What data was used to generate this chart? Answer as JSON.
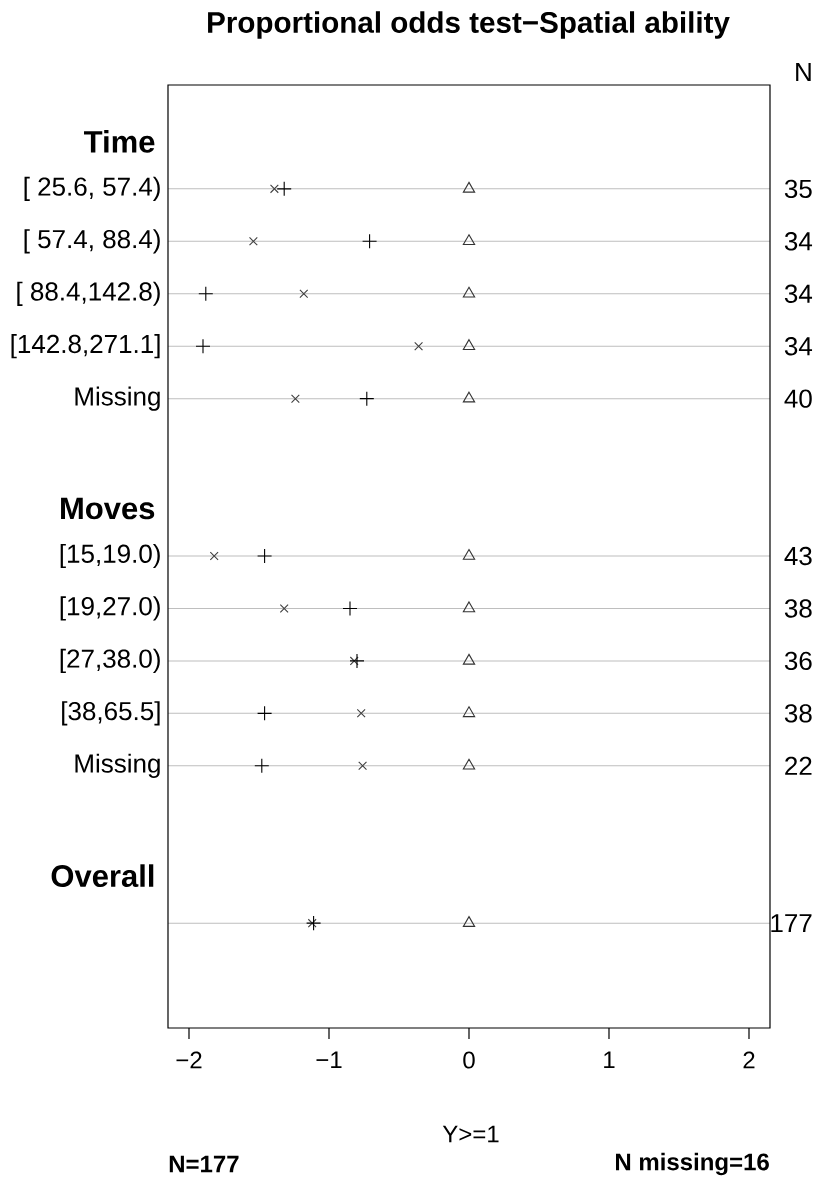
{
  "chart_data": {
    "type": "scatter",
    "orientation": "horizontal",
    "title": "Proportional odds test−Spatial ability",
    "xlabel": "Y>=1",
    "y2label": "N",
    "categories": [
      "Time",
      "[ 25.6, 57.4)",
      "[ 57.4, 88.4)",
      "[ 88.4,142.8)",
      "[142.8,271.1]",
      "Missing",
      null,
      "Moves",
      "[15,19.0)",
      "[19,27.0)",
      "[27,38.0)",
      "[38,65.5]",
      "Missing",
      null,
      "Overall",
      null
    ],
    "y2_categories": [
      null,
      "35",
      "34",
      "34",
      "34",
      "40",
      null,
      null,
      "43",
      "38",
      "36",
      "38",
      "22",
      null,
      null,
      "177"
    ],
    "series": [
      {
        "color": "#333333",
        "marker": "triangle",
        "values": [
          null,
          0,
          0,
          0,
          0,
          0,
          null,
          null,
          0,
          0,
          0,
          0,
          0,
          null,
          null,
          0
        ]
      },
      {
        "color": "#404040",
        "marker": "cross",
        "values": [
          null,
          -1.39,
          -1.54,
          -1.18,
          -0.36,
          -1.24,
          null,
          null,
          -1.82,
          -1.32,
          -0.82,
          -0.77,
          -0.76,
          null,
          null,
          -1.12
        ]
      },
      {
        "color": "#000000",
        "marker": "plus",
        "values": [
          null,
          -1.32,
          -0.71,
          -1.88,
          -1.9,
          -0.73,
          null,
          null,
          -1.46,
          -0.85,
          -0.8,
          -1.46,
          -1.48,
          null,
          null,
          -1.11
        ]
      }
    ],
    "xlim": [
      -2.15,
      2.15
    ],
    "xticks": [
      {
        "value": -2,
        "label": "−2"
      },
      {
        "value": -1,
        "label": "−1"
      },
      0,
      1,
      2
    ],
    "grid": "y",
    "annotations": [
      "N=177",
      "N missing=16"
    ]
  }
}
